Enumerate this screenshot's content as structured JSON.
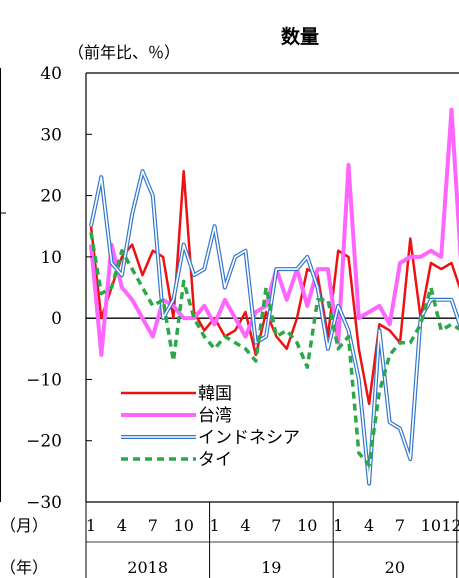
{
  "chart_data": {
    "type": "line",
    "title": "数量",
    "ylabel": "（前年比、％）",
    "x_row_label_month": "（月）",
    "x_row_label_year": "（年）",
    "ylim": [
      -30,
      40
    ],
    "yticks": [
      -30,
      -20,
      -10,
      0,
      10,
      20,
      30,
      40
    ],
    "month_ticks": [
      "1",
      "4",
      "7",
      "10",
      "1",
      "4",
      "7",
      "10",
      "1",
      "4",
      "7",
      "10",
      "12"
    ],
    "year_labels": [
      "2018",
      "19",
      "20",
      "2"
    ],
    "x_start": "2018-01",
    "x_end": "2021-01",
    "series": [
      {
        "name": "韓国",
        "color": "#ee1111",
        "style": "solid",
        "values": [
          15,
          0,
          5,
          10,
          12,
          7,
          11,
          10,
          0,
          24,
          1,
          -2,
          0,
          -3,
          -2,
          1,
          -6,
          1,
          -3,
          -5,
          0,
          8,
          7,
          -3,
          11,
          10,
          -5,
          -14,
          -1,
          -2,
          -4,
          13,
          0,
          9,
          8,
          9,
          4
        ]
      },
      {
        "name": "台湾",
        "color": "#ff66ff",
        "style": "solid",
        "values": [
          12,
          -6,
          12,
          5,
          3,
          0,
          -3,
          3,
          2,
          0,
          0,
          2,
          -1,
          3,
          0,
          -3,
          1,
          2,
          8,
          3,
          8,
          2,
          8,
          8,
          -4,
          25,
          0,
          1,
          2,
          -1,
          9,
          10,
          10,
          11,
          10,
          34,
          7
        ]
      },
      {
        "name": "インドネシア",
        "color": "#3377cc",
        "style": "double",
        "values": [
          15,
          23,
          9,
          7,
          17,
          24,
          20,
          0,
          3,
          12,
          7,
          8,
          15,
          5,
          10,
          11,
          -4,
          -3,
          8,
          8,
          8,
          10,
          5,
          -5,
          2,
          -2,
          -10,
          -27,
          -2,
          -17,
          -18,
          -23,
          0,
          3,
          3,
          3,
          -2
        ]
      },
      {
        "name": "タイ",
        "color": "#2aa84a",
        "style": "dashed",
        "values": [
          14,
          4,
          5,
          11,
          8,
          5,
          2,
          3,
          -7,
          6,
          0,
          -3,
          -5,
          -3,
          -4,
          -5,
          -7,
          5,
          -3,
          -2,
          -4,
          -8,
          3,
          3,
          -5,
          -3,
          -22,
          -24,
          -12,
          -6,
          -4,
          -4,
          -1,
          5,
          -2,
          -1,
          -2
        ]
      }
    ],
    "legend_position": "bottom-left",
    "grid": false
  }
}
